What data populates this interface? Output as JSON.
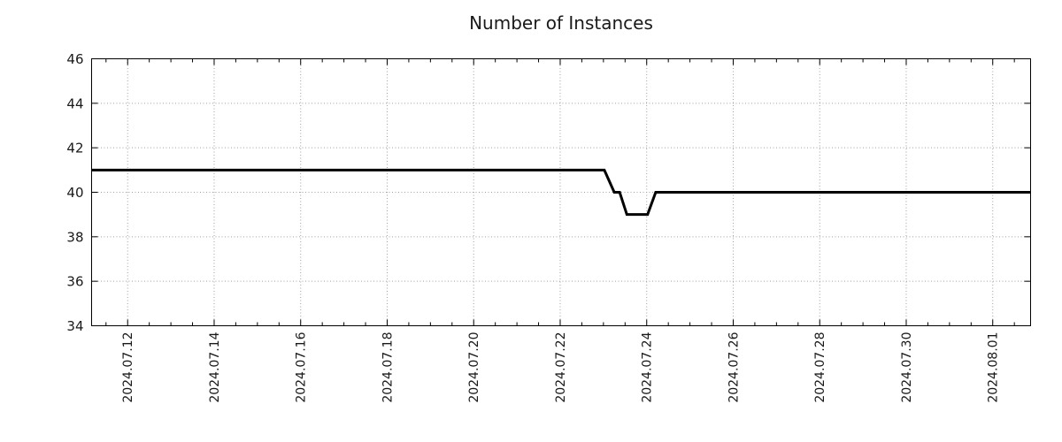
{
  "chart_data": {
    "type": "line",
    "title": "Number of Instances",
    "xlabel": "",
    "ylabel": "",
    "ylim": [
      34,
      46
    ],
    "y_ticks": [
      34,
      36,
      38,
      40,
      42,
      44,
      46
    ],
    "x_ticks": [
      "2024.07.12",
      "2024.07.14",
      "2024.07.16",
      "2024.07.18",
      "2024.07.20",
      "2024.07.22",
      "2024.07.24",
      "2024.07.26",
      "2024.07.28",
      "2024.07.30",
      "2024.08.01"
    ],
    "x_range": [
      "2024-07-11T04:00:00",
      "2024-08-01T21:00:00"
    ],
    "x_minor_tick_hours": 12,
    "grid": true,
    "legend": false,
    "series": [
      {
        "name": "instances",
        "color": "#000000",
        "points": [
          {
            "time": "2024-07-11T04:00:00",
            "value": 41
          },
          {
            "time": "2024-07-23T00:30:00",
            "value": 41
          },
          {
            "time": "2024-07-23T06:00:00",
            "value": 40
          },
          {
            "time": "2024-07-23T09:00:00",
            "value": 40
          },
          {
            "time": "2024-07-23T13:00:00",
            "value": 39
          },
          {
            "time": "2024-07-24T00:30:00",
            "value": 39
          },
          {
            "time": "2024-07-24T05:00:00",
            "value": 40
          },
          {
            "time": "2024-08-01T21:00:00",
            "value": 40
          }
        ]
      }
    ],
    "colors": {
      "line": "#000000",
      "grid": "#a0a0a0",
      "axis": "#000000",
      "text": "#1a1a1a",
      "background": "#ffffff"
    }
  }
}
